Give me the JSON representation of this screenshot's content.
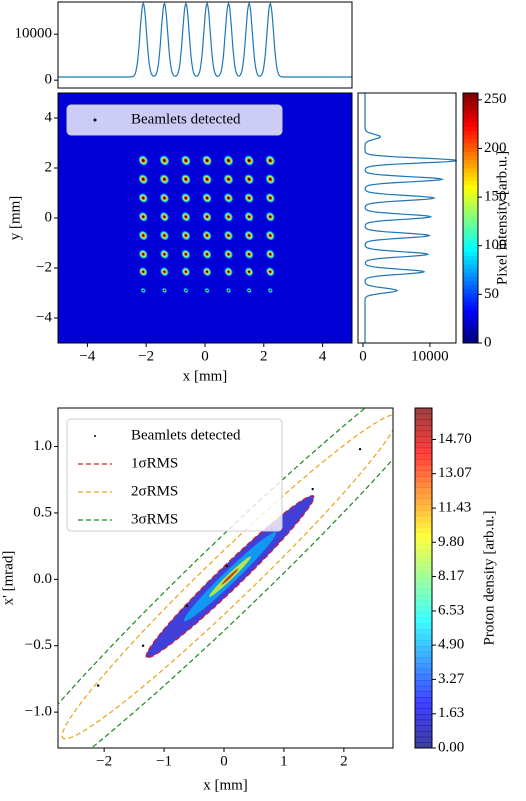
{
  "chart_data": [
    {
      "type": "profile",
      "orientation": "horizontal",
      "xlim": [
        -5,
        5
      ],
      "ylim": [
        -1700,
        17000
      ],
      "yticks": [
        0,
        10000
      ],
      "peak_x": [
        -2.1,
        -1.38,
        -0.65,
        0.07,
        0.8,
        1.5,
        2.22
      ],
      "peak_heights": [
        16000,
        16000,
        16000,
        16000,
        16000,
        16000,
        16000
      ],
      "peak_width": 0.11,
      "baseline": 700,
      "color": "#1f77b4"
    },
    {
      "type": "heatmap",
      "xlabel": "x [mm]",
      "ylabel": "y [mm]",
      "xlim": [
        -5,
        5
      ],
      "ylim": [
        -5,
        5
      ],
      "xticks": [
        {
          "value": -4,
          "label": "−4"
        },
        {
          "value": -2,
          "label": "−2"
        },
        0,
        2,
        4
      ],
      "yticks": [
        {
          "value": -4,
          "label": "−4"
        },
        {
          "value": -2,
          "label": "−2"
        },
        0,
        2,
        4
      ],
      "colormap": "jet",
      "background": 22,
      "beamlets": {
        "x": [
          -2.1,
          -1.38,
          -0.65,
          0.07,
          0.8,
          1.5,
          2.22
        ],
        "y": [
          2.3,
          1.55,
          0.8,
          0.05,
          -0.7,
          -1.45,
          -2.15,
          -2.9
        ],
        "row_intensity": [
          255,
          250,
          245,
          240,
          240,
          235,
          230,
          150
        ]
      },
      "legend": {
        "label": "Beamlets detected"
      },
      "colorbar": {
        "label": "Pixel intensity [arb.u.]",
        "lim": [
          0,
          257
        ],
        "ticks": [
          0,
          50,
          100,
          150,
          200,
          250
        ]
      }
    },
    {
      "type": "profile",
      "orientation": "vertical",
      "xlim": [
        -750,
        13900
      ],
      "ylim": [
        -5,
        5
      ],
      "xticks": [
        0,
        10000
      ],
      "peak_y": [
        3.25,
        2.3,
        1.55,
        0.8,
        0.05,
        -0.7,
        -1.45,
        -2.15,
        -2.9
      ],
      "peak_heights": [
        2300,
        13700,
        11500,
        10300,
        9800,
        9600,
        9400,
        8800,
        4800
      ],
      "peak_width": 0.1,
      "baseline": 300,
      "color": "#1f77b4"
    },
    {
      "type": "phase-space",
      "xlabel": "x [mm]",
      "ylabel": "x' [mrad]",
      "xlim": [
        -2.77,
        2.82
      ],
      "ylim": [
        -1.27,
        1.29
      ],
      "xticks": [
        {
          "value": -2,
          "label": "−2"
        },
        {
          "value": -1,
          "label": "−1"
        },
        0,
        1,
        2
      ],
      "yticks": [
        {
          "value": -1,
          "label": "−1.0"
        },
        {
          "value": -0.5,
          "label": "−0.5"
        },
        {
          "value": 0,
          "label": "0.0"
        },
        {
          "value": 0.5,
          "label": "0.5"
        },
        {
          "value": 1,
          "label": "1.0"
        }
      ],
      "points": {
        "name": "Beamlets detected",
        "color": "#000000",
        "x": [
          -2.1,
          -1.35,
          -0.62,
          0.05,
          0.8,
          1.48,
          2.27
        ],
        "y": [
          -0.8,
          -0.5,
          -0.2,
          0.1,
          0.38,
          0.68,
          0.98
        ]
      },
      "ellipse": {
        "center": [
          0.1,
          0.02
        ],
        "sigma_x": 1.4,
        "sigma_y": 0.61,
        "correlation": 0.98
      },
      "ellipses": [
        {
          "name": "1σRMS",
          "color": "#e41a1c",
          "n_sigma": 1
        },
        {
          "name": "2σRMS",
          "color": "#e8a317",
          "n_sigma": 2
        },
        {
          "name": "3σRMS",
          "color": "#1a8a1a",
          "n_sigma": 3
        }
      ],
      "density": [
        {
          "value": 1.2,
          "n_sigma": 1
        },
        {
          "value": 4.9,
          "n_sigma": 0.55
        },
        {
          "value": 9.8,
          "n_sigma": 0.25
        },
        {
          "value": 14.7,
          "n_sigma": 0.1
        }
      ],
      "colorbar": {
        "label": "Proton density [arb.u.]",
        "lim": [
          0,
          16.2
        ],
        "ticks": [
          {
            "value": 0,
            "label": "0.00"
          },
          1.63,
          3.27,
          {
            "value": 4.9,
            "label": "4.90"
          },
          6.53,
          8.17,
          {
            "value": 9.8,
            "label": "9.80"
          },
          11.43,
          13.07,
          {
            "value": 14.7,
            "label": "14.70"
          }
        ]
      }
    }
  ]
}
